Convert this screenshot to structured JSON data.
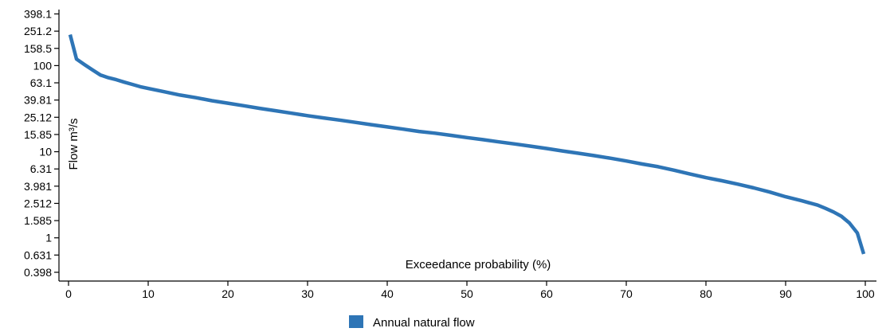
{
  "chart_data": {
    "type": "line",
    "title": "",
    "xlabel": "Exceedance probability (%)",
    "ylabel": "Flow m³/s",
    "x_ticks": [
      "0",
      "10",
      "20",
      "30",
      "40",
      "50",
      "60",
      "70",
      "80",
      "90",
      "100"
    ],
    "y_ticks": [
      "398.1",
      "251.2",
      "158.5",
      "100",
      "63.1",
      "39.81",
      "25.12",
      "15.85",
      "10",
      "6.31",
      "3.981",
      "2.512",
      "1.585",
      "1",
      "0.631",
      "0.398"
    ],
    "y_tick_values": [
      398.1,
      251.2,
      158.5,
      100,
      63.1,
      39.81,
      25.12,
      15.85,
      10,
      6.31,
      3.981,
      2.512,
      1.585,
      1,
      0.631,
      0.398
    ],
    "xlim": [
      0,
      100
    ],
    "ylim": [
      0.398,
      398.1
    ],
    "y_scale": "log",
    "grid": false,
    "legend_position": "bottom-left",
    "series": [
      {
        "name": "Annual natural flow",
        "color": "#2E75B6",
        "points": [
          [
            0.2,
            229.1
          ],
          [
            1.0,
            119.1
          ],
          [
            2.0,
            102.7
          ],
          [
            3.0,
            89.2
          ],
          [
            4.0,
            77.8
          ],
          [
            5.0,
            72.4
          ],
          [
            6.0,
            68.6
          ],
          [
            7.0,
            64.2
          ],
          [
            8.0,
            60.5
          ],
          [
            9.0,
            56.9
          ],
          [
            10.0,
            54.3
          ],
          [
            12.0,
            49.7
          ],
          [
            14.0,
            45.5
          ],
          [
            16.0,
            42.4
          ],
          [
            18.0,
            39.1
          ],
          [
            20.0,
            36.6
          ],
          [
            22.0,
            34.2
          ],
          [
            24.0,
            31.9
          ],
          [
            26.0,
            29.9
          ],
          [
            28.0,
            28.0
          ],
          [
            30.0,
            26.2
          ],
          [
            32.0,
            24.7
          ],
          [
            34.0,
            23.3
          ],
          [
            36.0,
            21.9
          ],
          [
            38.0,
            20.6
          ],
          [
            40.0,
            19.4
          ],
          [
            42.0,
            18.3
          ],
          [
            44.0,
            17.2
          ],
          [
            46.0,
            16.4
          ],
          [
            48.0,
            15.5
          ],
          [
            50.0,
            14.6
          ],
          [
            52.0,
            13.8
          ],
          [
            54.0,
            13.0
          ],
          [
            56.0,
            12.3
          ],
          [
            58.0,
            11.6
          ],
          [
            60.0,
            10.9
          ],
          [
            62.0,
            10.2
          ],
          [
            64.0,
            9.6
          ],
          [
            66.0,
            9.0
          ],
          [
            68.0,
            8.4
          ],
          [
            70.0,
            7.8
          ],
          [
            72.0,
            7.2
          ],
          [
            74.0,
            6.7
          ],
          [
            76.0,
            6.1
          ],
          [
            78.0,
            5.5
          ],
          [
            80.0,
            5.0
          ],
          [
            82.0,
            4.6
          ],
          [
            84.0,
            4.2
          ],
          [
            86.0,
            3.8
          ],
          [
            88.0,
            3.4
          ],
          [
            90.0,
            3.0
          ],
          [
            92.0,
            2.7
          ],
          [
            94.0,
            2.4
          ],
          [
            95.0,
            2.2
          ],
          [
            96.0,
            2.0
          ],
          [
            97.0,
            1.78
          ],
          [
            98.0,
            1.49
          ],
          [
            99.0,
            1.14
          ],
          [
            99.8,
            0.65
          ]
        ]
      }
    ]
  }
}
